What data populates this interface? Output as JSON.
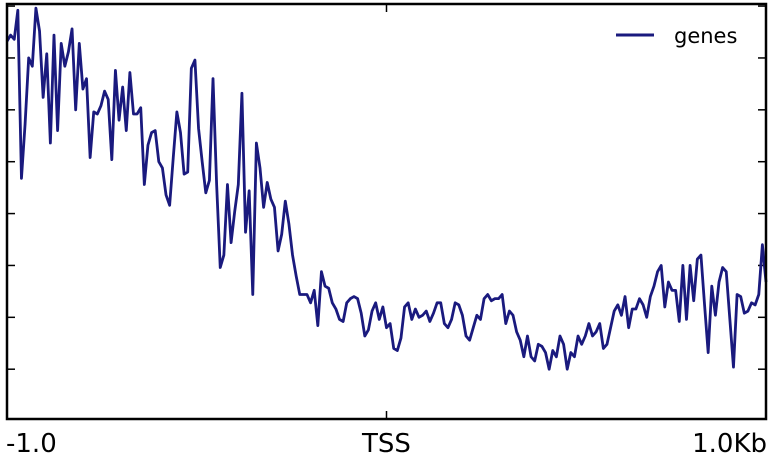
{
  "chart_data": {
    "type": "line",
    "x_ticks": [
      {
        "value": -1.0,
        "label": "-1.0"
      },
      {
        "value": 0.0,
        "label": "TSS"
      },
      {
        "value": 1.0,
        "label": "1.0Kb"
      }
    ],
    "xlim": [
      -1.0,
      1.0
    ],
    "ylim": [
      0,
      100
    ],
    "y_ticks": [
      12,
      24.5,
      37,
      49.5,
      62,
      74.5,
      87,
      99.5
    ],
    "grid": false,
    "legend_position": "top-right",
    "series": [
      {
        "name": "genes",
        "color": "#1a1a7e",
        "x_start": -1.0,
        "x_end": 1.0,
        "values": [
          91,
          92.5,
          91.5,
          98.5,
          58,
          71,
          87,
          85,
          99,
          93.5,
          77.5,
          88,
          66.5,
          92.5,
          69.5,
          90.5,
          85,
          88.5,
          94,
          74.5,
          90.5,
          79.5,
          82,
          63,
          74,
          73.5,
          75.5,
          79,
          77,
          62.5,
          84,
          72,
          80,
          69.5,
          83.5,
          73.5,
          73.5,
          75,
          56.5,
          66,
          69,
          69.5,
          62,
          60.5,
          54,
          51.5,
          63,
          74,
          69,
          59,
          59.5,
          84.5,
          86.5,
          70,
          62,
          54.5,
          57.5,
          82,
          56.5,
          36.5,
          39.5,
          56.5,
          42.5,
          50,
          56.5,
          78.5,
          45,
          55,
          30,
          66.5,
          60.5,
          51,
          57,
          53,
          51,
          40.5,
          44.5,
          52.5,
          47,
          39.5,
          34.5,
          30,
          30,
          30,
          28,
          31,
          22.5,
          35.5,
          32,
          31.5,
          28,
          26.5,
          24,
          23.5,
          28,
          29,
          29.5,
          29,
          25.5,
          20,
          21.5,
          26,
          28,
          24,
          27,
          22,
          23,
          17,
          16.5,
          19.5,
          27,
          28,
          24,
          26.5,
          24.5,
          25,
          26,
          23.5,
          25.5,
          28,
          28,
          23,
          22,
          24,
          28,
          27.5,
          25,
          20,
          19,
          22,
          25,
          24,
          29,
          30,
          28.5,
          29,
          29,
          30,
          23,
          26,
          25,
          21,
          19,
          15,
          20,
          15,
          14,
          18,
          17.5,
          16,
          12,
          16.5,
          15,
          20,
          18,
          12,
          16,
          15,
          20,
          18,
          20,
          23,
          20,
          21,
          23,
          17,
          18,
          22,
          26,
          27.5,
          25,
          29.5,
          22,
          26.5,
          26.5,
          29,
          27.5,
          24.5,
          29.5,
          32,
          35.5,
          37,
          27,
          33,
          31,
          31,
          23.5,
          37,
          24,
          37,
          28.5,
          38.5,
          39.5,
          27.5,
          16,
          32,
          25,
          33,
          36.5,
          35.5,
          24,
          12.5,
          30,
          29.5,
          25.5,
          26,
          28,
          27.5,
          30,
          42,
          33
        ]
      }
    ]
  }
}
